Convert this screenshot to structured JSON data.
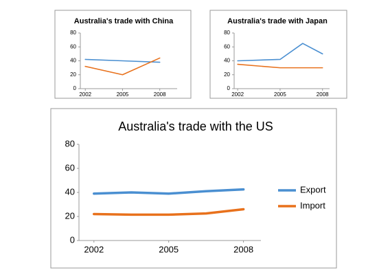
{
  "chart_data": [
    {
      "type": "line",
      "title": "Australia's trade with China",
      "x": [
        2002,
        2005,
        2008
      ],
      "xlim": [
        2001.6,
        2009.4
      ],
      "xticks": [
        2002,
        2005,
        2008
      ],
      "ylim": [
        0,
        80
      ],
      "yticks": [
        0,
        20,
        40,
        60,
        80
      ],
      "series": [
        {
          "name": "Export",
          "color": "#4a8fd1",
          "values": [
            42,
            40,
            38
          ]
        },
        {
          "name": "Import",
          "color": "#e8711c",
          "values": [
            32,
            20,
            44
          ]
        }
      ]
    },
    {
      "type": "line",
      "title": "Australia's trade with Japan",
      "x": [
        2002,
        2005,
        2006.6,
        2008
      ],
      "xlim": [
        2001.75,
        2008.5
      ],
      "xticks": [
        2002,
        2005,
        2008
      ],
      "ylim": [
        0,
        80
      ],
      "yticks": [
        0,
        20,
        40,
        60,
        80
      ],
      "series": [
        {
          "name": "Export",
          "color": "#4a8fd1",
          "values": [
            40,
            42,
            65,
            50
          ]
        },
        {
          "name": "Import",
          "color": "#e8711c",
          "values": [
            35,
            30,
            30,
            30
          ]
        }
      ]
    },
    {
      "type": "line",
      "title": "Australia's trade with the US",
      "x": [
        2002,
        2003.5,
        2005,
        2006.5,
        2008
      ],
      "xlim": [
        2001.4,
        2008.7
      ],
      "xticks": [
        2002,
        2005,
        2008
      ],
      "ylim": [
        0,
        80
      ],
      "yticks": [
        0,
        20,
        40,
        60,
        80
      ],
      "legend": "right",
      "series": [
        {
          "name": "Export",
          "color": "#4a8fd1",
          "values": [
            39,
            40,
            39,
            41,
            42.5
          ]
        },
        {
          "name": "Import",
          "color": "#e8711c",
          "values": [
            22,
            21.5,
            21.5,
            22.5,
            26
          ]
        }
      ]
    }
  ]
}
